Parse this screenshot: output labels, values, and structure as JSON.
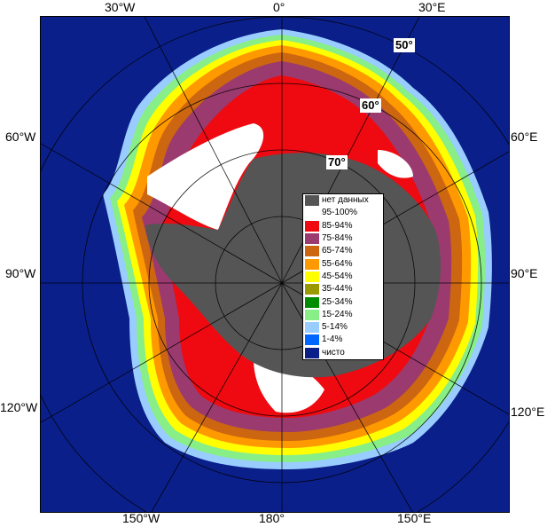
{
  "longitude_labels": {
    "w30": "30°W",
    "zero": "0°",
    "e30": "30°E",
    "w60": "60°W",
    "e60": "60°E",
    "w90": "90°W",
    "e90": "90°E",
    "w120": "120°W",
    "e120": "120°E",
    "w150": "150°W",
    "deg180": "180°",
    "e150": "150°E"
  },
  "latitude_labels": {
    "lat50": "50°",
    "lat60": "60°",
    "lat70": "70°"
  },
  "legend": {
    "items": [
      {
        "label": "нет данных",
        "color": "#555555"
      },
      {
        "label": "95-100%",
        "color": "#ffffff"
      },
      {
        "label": "85-94%",
        "color": "#ee0a10"
      },
      {
        "label": "75-84%",
        "color": "#9b3a6e"
      },
      {
        "label": "65-74%",
        "color": "#cc6611"
      },
      {
        "label": "55-64%",
        "color": "#ff9900"
      },
      {
        "label": "45-54%",
        "color": "#ffff00"
      },
      {
        "label": "35-44%",
        "color": "#9a9a00"
      },
      {
        "label": "25-34%",
        "color": "#008c00"
      },
      {
        "label": "15-24%",
        "color": "#88ee88"
      },
      {
        "label": "5-14%",
        "color": "#99ccff"
      },
      {
        "label": "1-4%",
        "color": "#0066ff"
      },
      {
        "label": "чисто",
        "color": "#0a1f8a"
      }
    ]
  }
}
